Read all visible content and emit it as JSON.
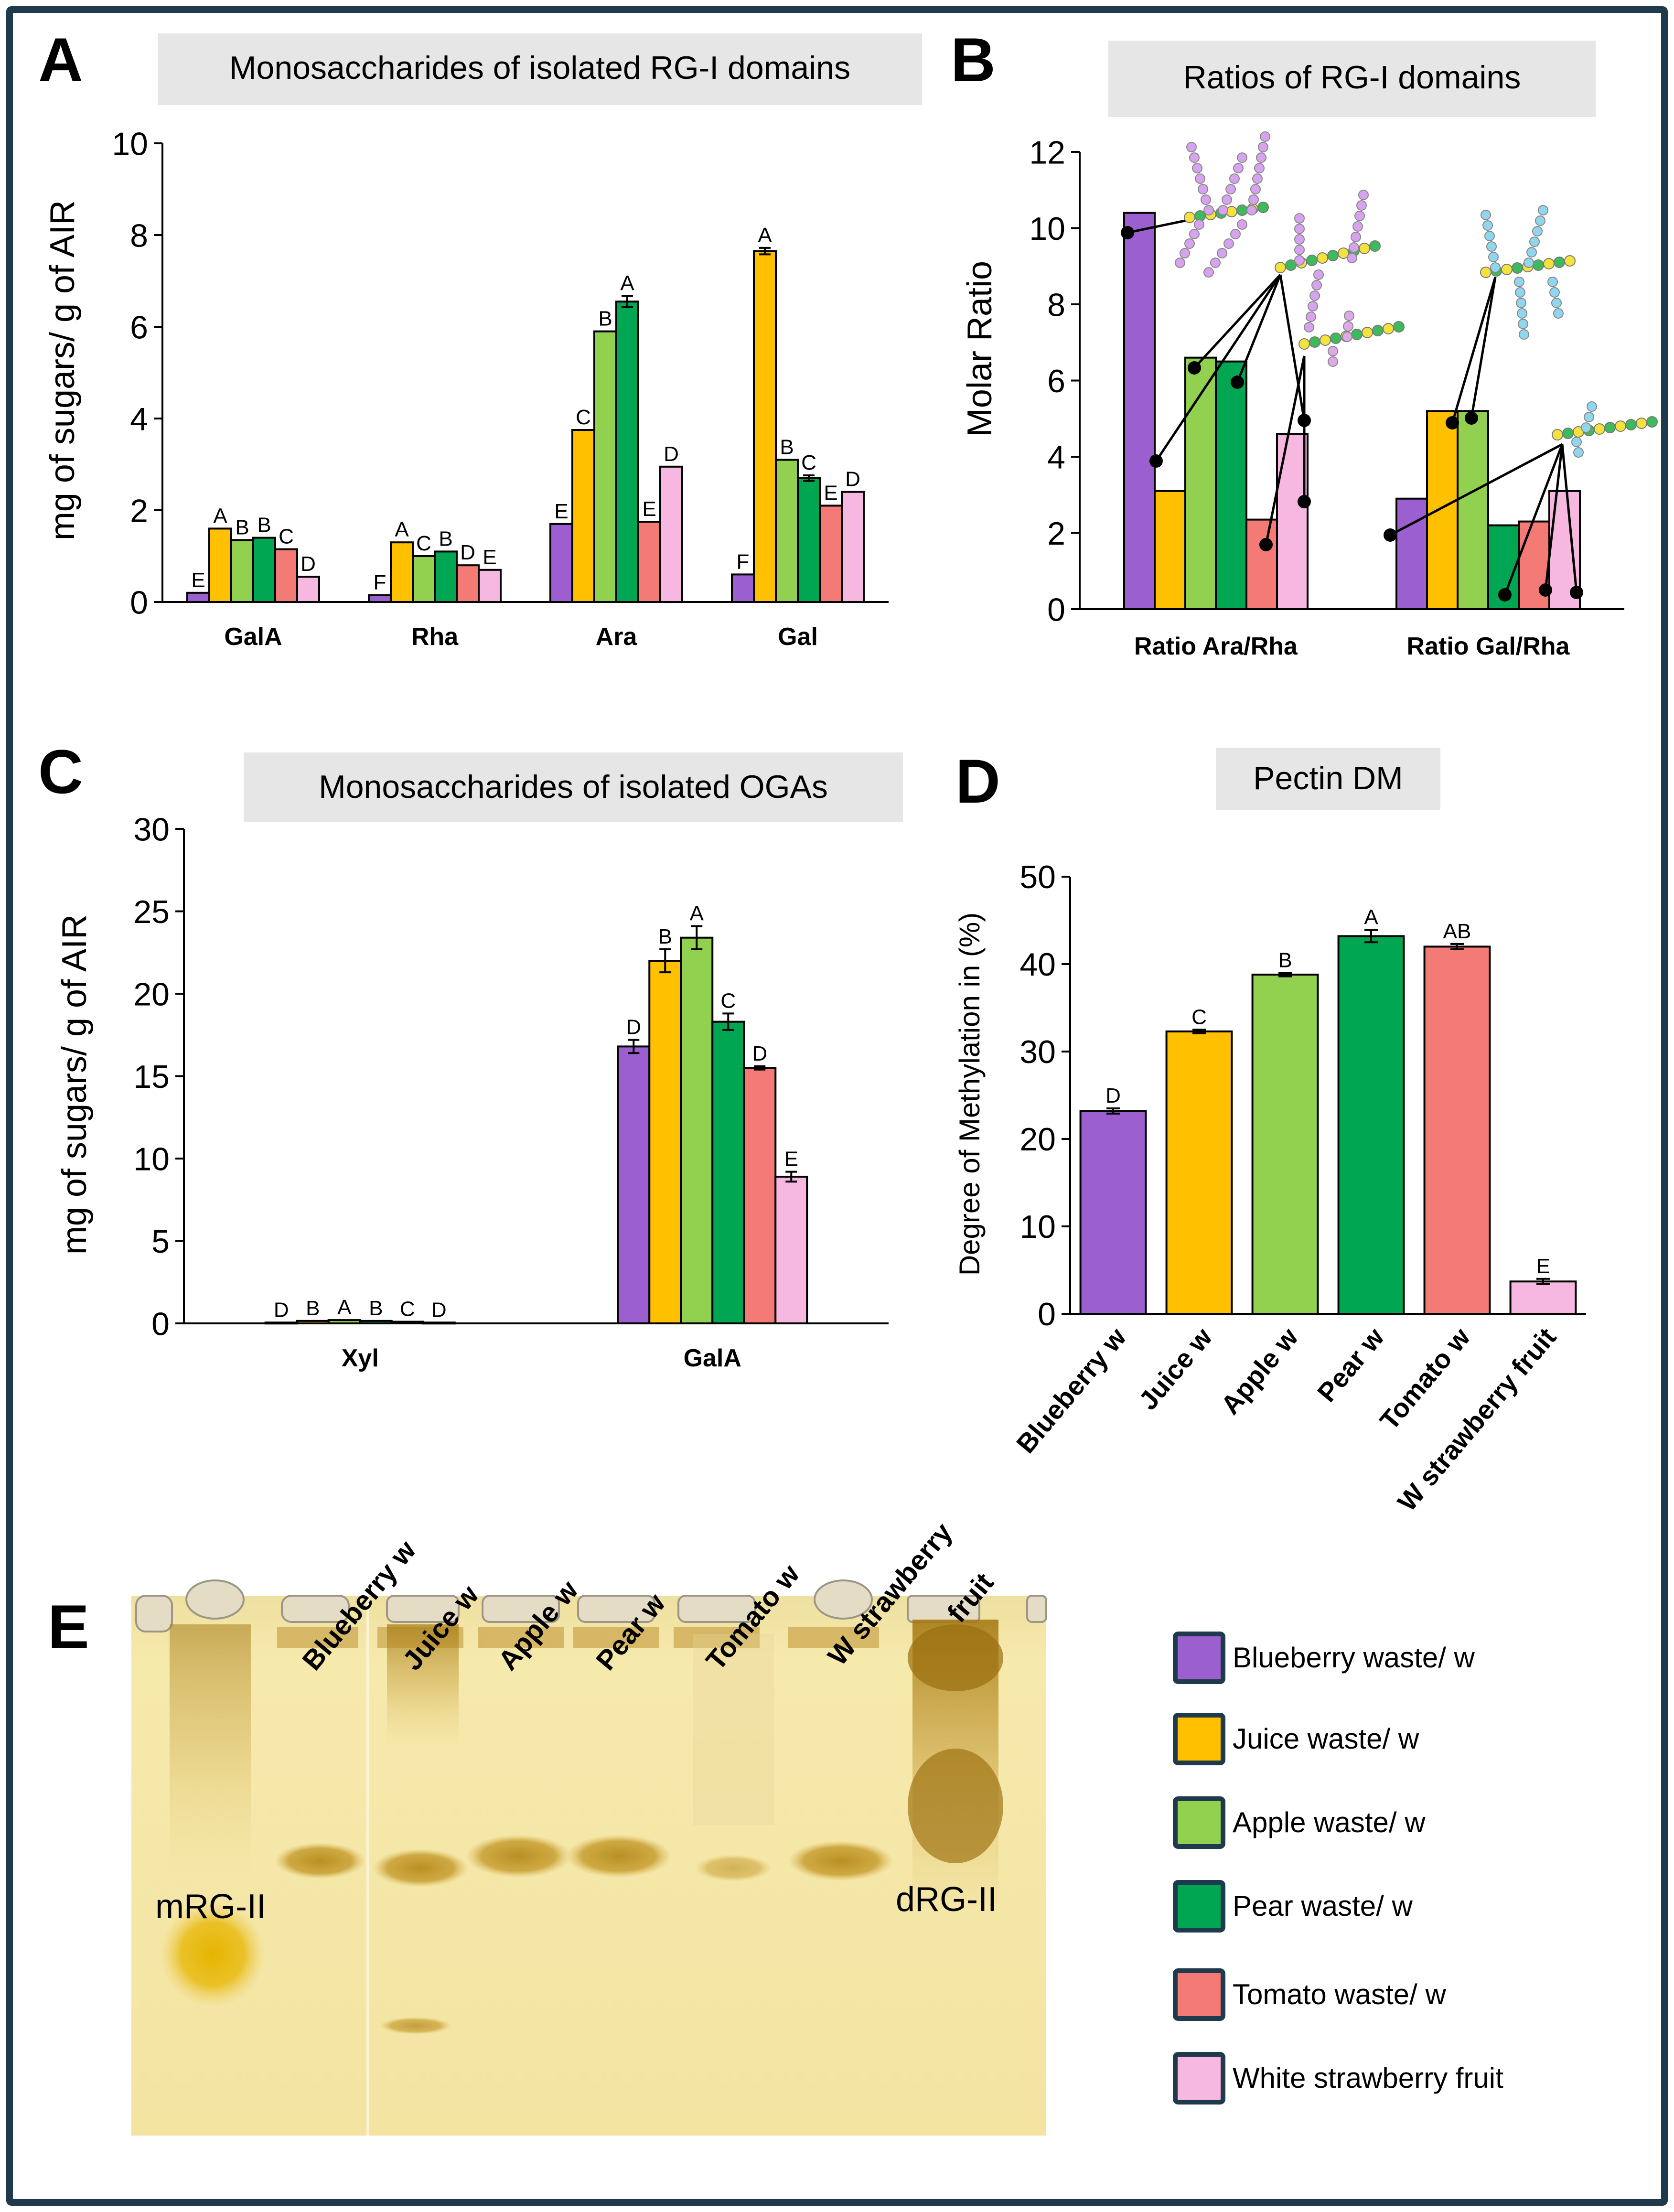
{
  "colors": {
    "frame": "#1f3a4d",
    "series": [
      "#9b5fcf",
      "#ffc000",
      "#92d050",
      "#00a651",
      "#f47a76",
      "#f6b8e0"
    ],
    "title_box": "#e6e6e6",
    "bar_stroke": "#000000",
    "gel_bg": "#f6e8a8",
    "gel_band": "#b58a1c"
  },
  "panels": {
    "A": {
      "letter": "A",
      "title": "Monosaccharides of isolated RG-I domains"
    },
    "B": {
      "letter": "B",
      "title": "Ratios of RG-I domains"
    },
    "C": {
      "letter": "C",
      "title": "Monosaccharides of isolated OGAs"
    },
    "D": {
      "letter": "D",
      "title": "Pectin DM"
    },
    "E": {
      "letter": "E"
    }
  },
  "chart_data": [
    {
      "id": "A",
      "type": "bar",
      "title": "Monosaccharides of isolated RG-I domains",
      "ylabel": "mg of sugars/ g of AIR",
      "xlabel": "",
      "ylim": [
        0,
        10
      ],
      "yticks": [
        0,
        2,
        4,
        6,
        8,
        10
      ],
      "categories": [
        "GalA",
        "Rha",
        "Ara",
        "Gal"
      ],
      "series": [
        {
          "name": "Blueberry waste/ w",
          "values": [
            0.2,
            0.15,
            1.7,
            0.6
          ],
          "errors": [
            0,
            0,
            0,
            0
          ],
          "letters": [
            "E",
            "F",
            "E",
            "F"
          ]
        },
        {
          "name": "Juice waste/ w",
          "values": [
            1.6,
            1.3,
            3.75,
            7.65
          ],
          "errors": [
            0,
            0,
            0,
            0.07
          ],
          "letters": [
            "A",
            "A",
            "C",
            "A"
          ]
        },
        {
          "name": "Apple waste/ w",
          "values": [
            1.35,
            1.0,
            5.9,
            3.1
          ],
          "errors": [
            0,
            0,
            0,
            0
          ],
          "letters": [
            "B",
            "C",
            "B",
            "B"
          ]
        },
        {
          "name": "Pear waste/ w",
          "values": [
            1.4,
            1.1,
            6.55,
            2.7
          ],
          "errors": [
            0,
            0,
            0.12,
            0.06
          ],
          "letters": [
            "B",
            "B",
            "A",
            "C"
          ]
        },
        {
          "name": "Tomato waste/ w",
          "values": [
            1.15,
            0.8,
            1.75,
            2.1
          ],
          "errors": [
            0,
            0,
            0,
            0
          ],
          "letters": [
            "C",
            "D",
            "E",
            "E"
          ]
        },
        {
          "name": "White strawberry fruit",
          "values": [
            0.55,
            0.7,
            2.95,
            2.4
          ],
          "errors": [
            0,
            0,
            0,
            0
          ],
          "letters": [
            "D",
            "E",
            "D",
            "D"
          ]
        }
      ]
    },
    {
      "id": "B",
      "type": "bar",
      "title": "Ratios of RG-I domains",
      "ylabel": "Molar Ratio",
      "xlabel": "",
      "ylim": [
        0,
        12
      ],
      "yticks": [
        0,
        2,
        4,
        6,
        8,
        10,
        12
      ],
      "categories": [
        "Ratio Ara/Rha",
        "Ratio Gal/Rha"
      ],
      "series": [
        {
          "name": "Blueberry waste/ w",
          "values": [
            10.4,
            2.9
          ]
        },
        {
          "name": "Juice waste/ w",
          "values": [
            3.1,
            5.2
          ]
        },
        {
          "name": "Apple waste/ w",
          "values": [
            6.6,
            5.2
          ]
        },
        {
          "name": "Pear waste/ w",
          "values": [
            6.5,
            2.2
          ]
        },
        {
          "name": "Tomato waste/ w",
          "values": [
            2.35,
            2.3
          ]
        },
        {
          "name": "White strawberry fruit",
          "values": [
            4.6,
            3.1
          ]
        }
      ]
    },
    {
      "id": "C",
      "type": "bar",
      "title": "Monosaccharides of isolated OGAs",
      "ylabel": "mg of sugars/ g of AIR",
      "xlabel": "",
      "ylim": [
        0,
        30
      ],
      "yticks": [
        0,
        5,
        10,
        15,
        20,
        25,
        30
      ],
      "categories": [
        "Xyl",
        "GalA"
      ],
      "series": [
        {
          "name": "Blueberry waste/ w",
          "values": [
            0.05,
            16.8
          ],
          "errors": [
            0,
            0.4
          ],
          "letters": [
            "D",
            "D"
          ]
        },
        {
          "name": "Juice waste/ w",
          "values": [
            0.15,
            22.0
          ],
          "errors": [
            0,
            0.7
          ],
          "letters": [
            "B",
            "B"
          ]
        },
        {
          "name": "Apple waste/ w",
          "values": [
            0.2,
            23.4
          ],
          "errors": [
            0,
            0.7
          ],
          "letters": [
            "A",
            "A"
          ]
        },
        {
          "name": "Pear waste/ w",
          "values": [
            0.15,
            18.3
          ],
          "errors": [
            0,
            0.5
          ],
          "letters": [
            "B",
            "C"
          ]
        },
        {
          "name": "Tomato waste/ w",
          "values": [
            0.1,
            15.5
          ],
          "errors": [
            0,
            0.1
          ],
          "letters": [
            "C",
            "D"
          ]
        },
        {
          "name": "White strawberry fruit",
          "values": [
            0.05,
            8.9
          ],
          "errors": [
            0,
            0.3
          ],
          "letters": [
            "D",
            "E"
          ]
        }
      ]
    },
    {
      "id": "D",
      "type": "bar",
      "title": "Pectin DM",
      "ylabel": "Degree of Methylation in (%)",
      "xlabel": "",
      "ylim": [
        0,
        50
      ],
      "yticks": [
        0,
        10,
        20,
        30,
        40,
        50
      ],
      "categories": [
        "Blueberry w",
        "Juice w",
        "Apple w",
        "Pear w",
        "Tomato w",
        "W strawberry fruit"
      ],
      "values": [
        23.2,
        32.3,
        38.8,
        43.2,
        42.0,
        3.7
      ],
      "errors": [
        0.3,
        0.2,
        0.2,
        0.7,
        0.3,
        0.3
      ],
      "letters": [
        "D",
        "C",
        "B",
        "A",
        "AB",
        "E"
      ]
    }
  ],
  "gel": {
    "lane_labels": [
      "Blueberry w",
      "Juice w",
      "Apple w",
      "Pear w",
      "Tomato w",
      "W strawberry",
      "fruit"
    ],
    "mrg_label": "mRG-II",
    "drg_label": "dRG-II"
  },
  "legend": {
    "items": [
      "Blueberry waste/ w",
      "Juice  waste/  w",
      "Apple  waste/  w",
      "Pear waste/ w",
      "Tomato waste/ w",
      "White strawberry fruit"
    ]
  }
}
